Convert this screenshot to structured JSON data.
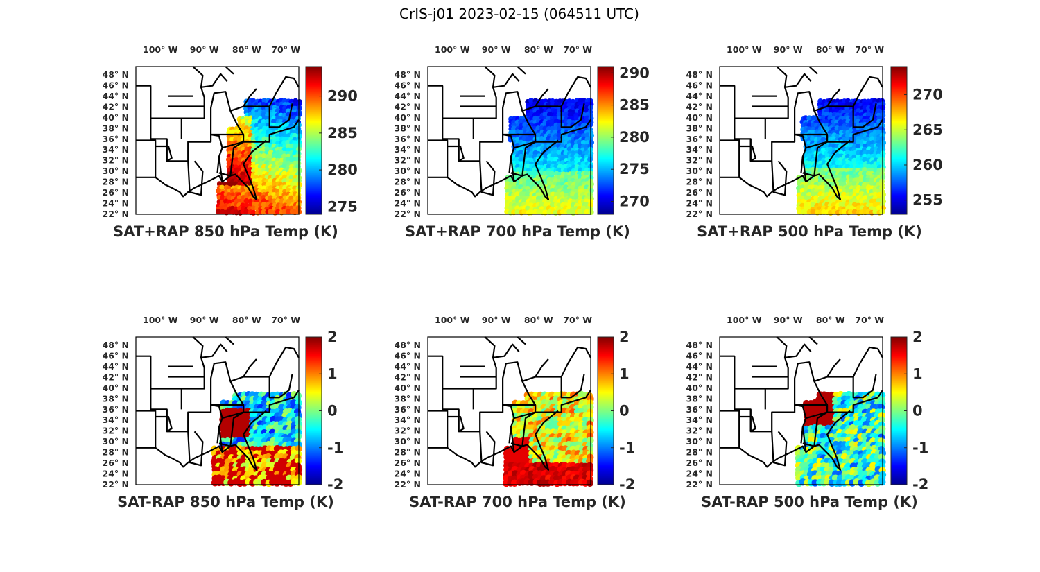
{
  "figure": {
    "title": "CrIS-j01 2023-02-15 (064511 UTC)"
  },
  "lon_labels": [
    "100",
    "90",
    "80",
    "70"
  ],
  "lon_suffix": "W",
  "lat_labels": [
    "48",
    "46",
    "44",
    "42",
    "40",
    "38",
    "36",
    "34",
    "32",
    "30",
    "28",
    "26",
    "24",
    "22"
  ],
  "lat_suffix": "N",
  "degree_symbol": "°",
  "colormap": "jet",
  "chart_data": [
    {
      "type": "heatmap",
      "title": "SAT+RAP 850 hPa Temp (K)",
      "xlim": [
        -106,
        -66
      ],
      "ylim": [
        22,
        50
      ],
      "clim": [
        274,
        294
      ],
      "colorbar_ticks": [
        "290",
        "285",
        "280",
        "275"
      ],
      "colorbar_tick_values": [
        290,
        285,
        280,
        275
      ],
      "field": "sum",
      "level": 850
    },
    {
      "type": "heatmap",
      "title": "SAT+RAP 700 hPa Temp (K)",
      "xlim": [
        -106,
        -66
      ],
      "ylim": [
        22,
        50
      ],
      "clim": [
        268,
        291
      ],
      "colorbar_ticks": [
        "290",
        "285",
        "280",
        "275",
        "270"
      ],
      "colorbar_tick_values": [
        290,
        285,
        280,
        275,
        270
      ],
      "field": "sum",
      "level": 700
    },
    {
      "type": "heatmap",
      "title": "SAT+RAP 500 hPa Temp (K)",
      "xlim": [
        -106,
        -66
      ],
      "ylim": [
        22,
        50
      ],
      "clim": [
        253,
        274
      ],
      "colorbar_ticks": [
        "270",
        "265",
        "260",
        "255"
      ],
      "colorbar_tick_values": [
        270,
        265,
        260,
        255
      ],
      "field": "sum",
      "level": 500
    },
    {
      "type": "heatmap",
      "title": "SAT-RAP 850 hPa Temp (K)",
      "xlim": [
        -106,
        -66
      ],
      "ylim": [
        22,
        50
      ],
      "clim": [
        -2,
        2
      ],
      "colorbar_ticks": [
        "2",
        "1",
        "0",
        "-1",
        "-2"
      ],
      "colorbar_tick_values": [
        2,
        1,
        0,
        -1,
        -2
      ],
      "field": "diff",
      "level": 850
    },
    {
      "type": "heatmap",
      "title": "SAT-RAP 700 hPa Temp (K)",
      "xlim": [
        -106,
        -66
      ],
      "ylim": [
        22,
        50
      ],
      "clim": [
        -2,
        2
      ],
      "colorbar_ticks": [
        "2",
        "1",
        "0",
        "-1",
        "-2"
      ],
      "colorbar_tick_values": [
        2,
        1,
        0,
        -1,
        -2
      ],
      "field": "diff",
      "level": 700
    },
    {
      "type": "heatmap",
      "title": "SAT-RAP 500 hPa Temp (K)",
      "xlim": [
        -106,
        -66
      ],
      "ylim": [
        22,
        50
      ],
      "clim": [
        -2,
        2
      ],
      "colorbar_ticks": [
        "2",
        "1",
        "0",
        "-1",
        "-2"
      ],
      "colorbar_tick_values": [
        2,
        1,
        0,
        -1,
        -2
      ],
      "field": "diff",
      "level": 500
    }
  ]
}
